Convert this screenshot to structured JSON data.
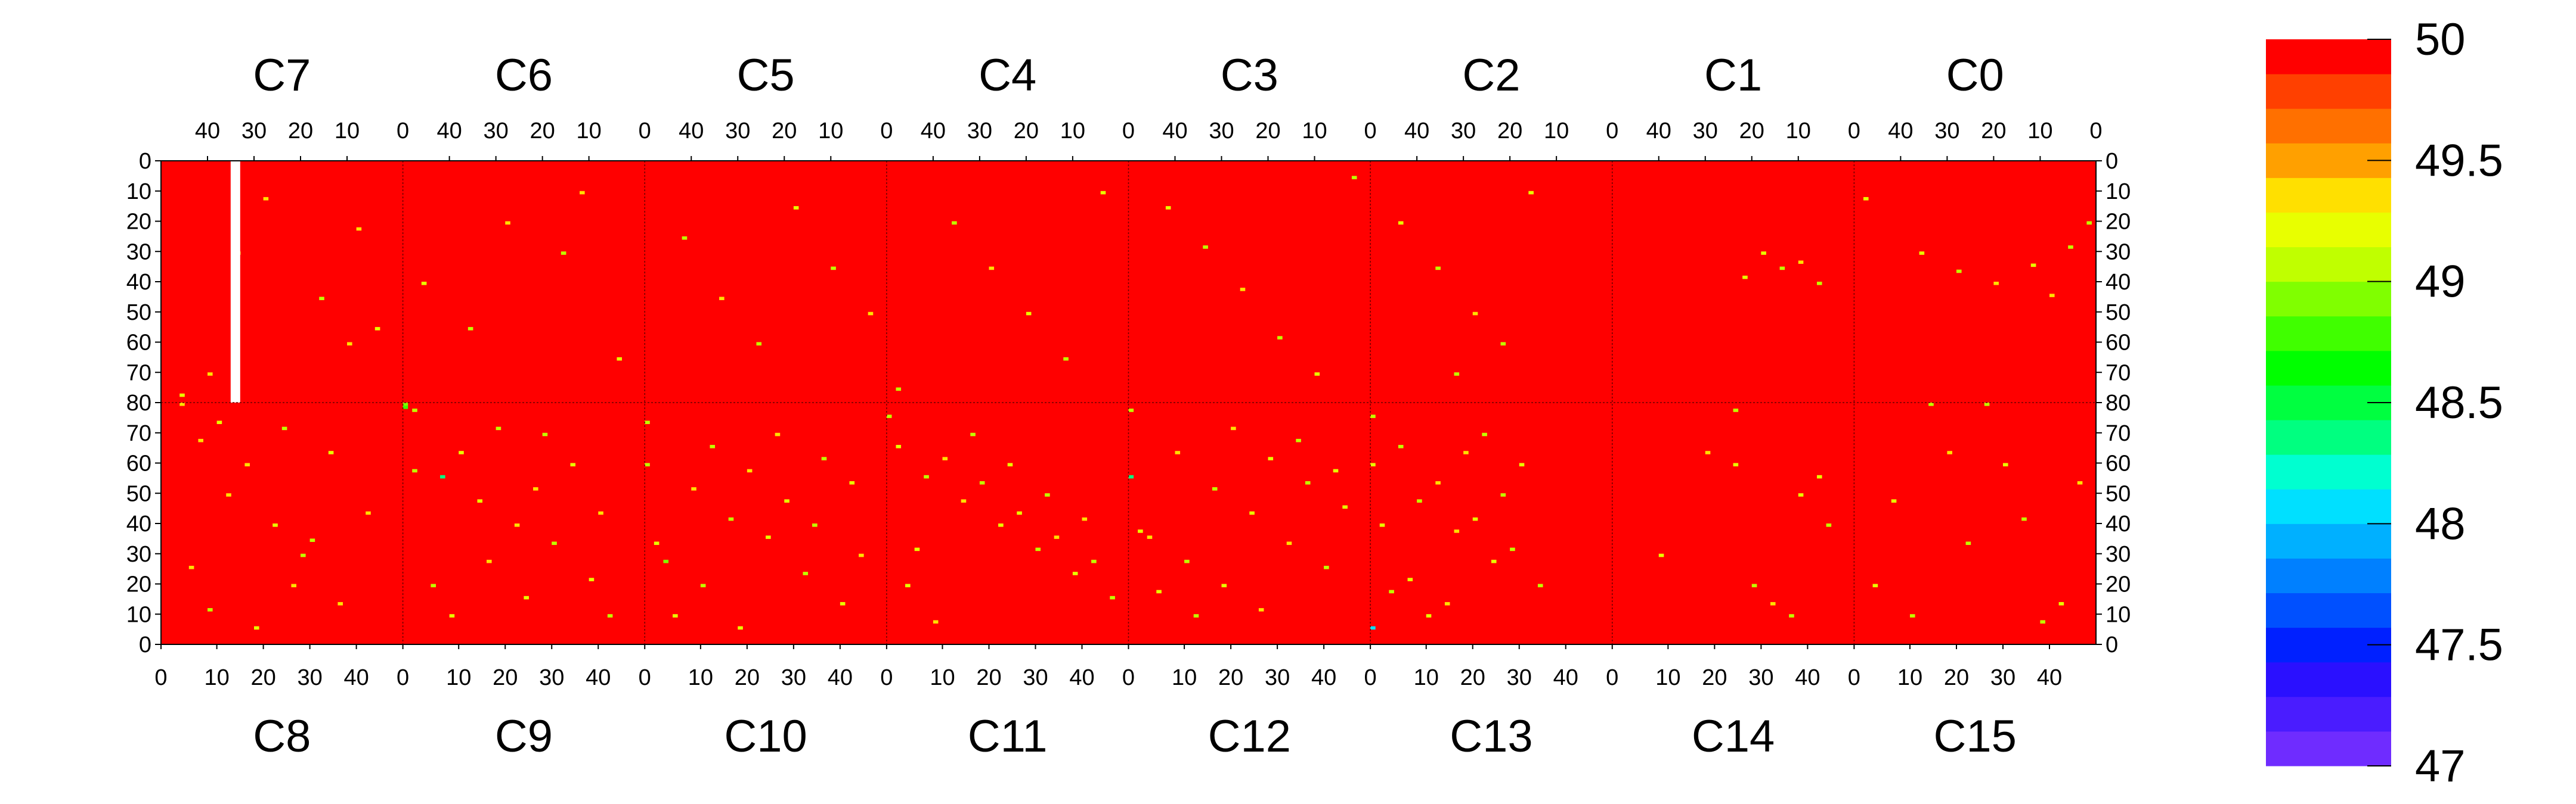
{
  "chart_data": {
    "type": "heatmap",
    "title": "",
    "top_chip_labels": [
      "C7",
      "C6",
      "C5",
      "C4",
      "C3",
      "C2",
      "C1",
      "C0"
    ],
    "bottom_chip_labels": [
      "C8",
      "C9",
      "C10",
      "C11",
      "C12",
      "C13",
      "C14",
      "C15"
    ],
    "x_tick_values": [
      0,
      10,
      20,
      30,
      40
    ],
    "y_tick_labels": [
      "0",
      "10",
      "20",
      "30",
      "40",
      "50",
      "60",
      "70",
      "80",
      "70",
      "60",
      "50",
      "40",
      "30",
      "20",
      "10",
      "0"
    ],
    "cols_per_chip": 52,
    "rows": 160,
    "grid": false,
    "colorbar": {
      "min": 47,
      "max": 50,
      "labels": [
        "50",
        "49.5",
        "49",
        "48.5",
        "48",
        "47.5",
        "47"
      ],
      "colors": [
        "#6f2cff",
        "#4a1cff",
        "#2a10ff",
        "#0020ff",
        "#0050ff",
        "#0080ff",
        "#00b0ff",
        "#00e0ff",
        "#00ffd0",
        "#00ff80",
        "#00ff40",
        "#00ff00",
        "#40ff00",
        "#80ff00",
        "#c0ff00",
        "#e8ff00",
        "#ffe000",
        "#ffa000",
        "#ff7000",
        "#ff4000",
        "#ff0000"
      ]
    },
    "background_value": 50,
    "background_color": "#ff0000",
    "dead_column": {
      "chip": "C7",
      "col": 34,
      "row_start": 0,
      "row_end": 80
    },
    "outliers": {
      "C8": [
        [
          4,
          80,
          49.3
        ],
        [
          4,
          77,
          49.2
        ],
        [
          18,
          100,
          49.4
        ],
        [
          24,
          120,
          49.2
        ],
        [
          28,
          140,
          49.3
        ],
        [
          10,
          148,
          49.1
        ],
        [
          6,
          134,
          49.4
        ],
        [
          36,
          96,
          49.2
        ],
        [
          14,
          110,
          49.3
        ],
        [
          26,
          88,
          49.1
        ],
        [
          32,
          125,
          49.0
        ],
        [
          8,
          92,
          49.3
        ],
        [
          20,
          154,
          49.2
        ],
        [
          40,
          60,
          49.4
        ],
        [
          44,
          116,
          49.3
        ],
        [
          12,
          86,
          49.2
        ],
        [
          30,
          130,
          49.1
        ],
        [
          38,
          146,
          49.3
        ],
        [
          22,
          12,
          49.4
        ],
        [
          16,
          30,
          49.2
        ],
        [
          34,
          45,
          49.1
        ],
        [
          42,
          22,
          49.3
        ],
        [
          46,
          55,
          49.2
        ],
        [
          10,
          70,
          49.4
        ]
      ],
      "C9": [
        [
          0,
          80,
          48.9
        ],
        [
          0,
          81,
          48.8
        ],
        [
          2,
          82,
          49.0
        ],
        [
          2,
          102,
          49.1
        ],
        [
          8,
          104,
          48.3
        ],
        [
          16,
          112,
          49.2
        ],
        [
          24,
          120,
          49.3
        ],
        [
          32,
          126,
          49.1
        ],
        [
          40,
          138,
          49.2
        ],
        [
          44,
          150,
          49.0
        ],
        [
          12,
          96,
          49.2
        ],
        [
          20,
          88,
          49.1
        ],
        [
          28,
          108,
          49.3
        ],
        [
          36,
          100,
          49.2
        ],
        [
          6,
          140,
          49.1
        ],
        [
          18,
          132,
          49.4
        ],
        [
          26,
          144,
          49.2
        ],
        [
          42,
          116,
          49.3
        ],
        [
          10,
          150,
          49.2
        ],
        [
          30,
          90,
          49.1
        ],
        [
          4,
          40,
          49.2
        ],
        [
          14,
          55,
          49.0
        ],
        [
          22,
          20,
          49.3
        ],
        [
          34,
          30,
          49.1
        ],
        [
          46,
          65,
          49.2
        ],
        [
          38,
          10,
          49.3
        ]
      ],
      "C10": [
        [
          0,
          86,
          49.0
        ],
        [
          0,
          100,
          49.1
        ],
        [
          2,
          126,
          49.2
        ],
        [
          4,
          132,
          48.9
        ],
        [
          10,
          108,
          49.3
        ],
        [
          18,
          118,
          49.1
        ],
        [
          26,
          124,
          49.2
        ],
        [
          34,
          136,
          49.0
        ],
        [
          42,
          146,
          49.2
        ],
        [
          14,
          94,
          49.1
        ],
        [
          22,
          102,
          49.3
        ],
        [
          30,
          112,
          49.2
        ],
        [
          38,
          98,
          49.1
        ],
        [
          46,
          130,
          49.3
        ],
        [
          6,
          150,
          49.2
        ],
        [
          12,
          140,
          49.1
        ],
        [
          20,
          154,
          49.2
        ],
        [
          28,
          90,
          49.3
        ],
        [
          36,
          120,
          49.1
        ],
        [
          44,
          106,
          49.2
        ],
        [
          8,
          25,
          49.1
        ],
        [
          16,
          45,
          49.3
        ],
        [
          24,
          60,
          49.0
        ],
        [
          32,
          15,
          49.2
        ],
        [
          40,
          35,
          49.1
        ],
        [
          48,
          50,
          49.3
        ]
      ],
      "C11": [
        [
          0,
          84,
          49.0
        ],
        [
          2,
          94,
          49.2
        ],
        [
          8,
          104,
          49.1
        ],
        [
          16,
          112,
          49.3
        ],
        [
          24,
          120,
          49.2
        ],
        [
          32,
          128,
          49.1
        ],
        [
          40,
          136,
          49.2
        ],
        [
          48,
          144,
          49.0
        ],
        [
          12,
          98,
          49.3
        ],
        [
          20,
          106,
          49.1
        ],
        [
          28,
          116,
          49.2
        ],
        [
          36,
          124,
          49.3
        ],
        [
          44,
          132,
          49.1
        ],
        [
          4,
          140,
          49.2
        ],
        [
          10,
          152,
          49.3
        ],
        [
          18,
          90,
          49.1
        ],
        [
          26,
          100,
          49.2
        ],
        [
          34,
          110,
          49.1
        ],
        [
          42,
          118,
          49.3
        ],
        [
          6,
          128,
          49.2
        ],
        [
          14,
          20,
          49.1
        ],
        [
          22,
          35,
          49.3
        ],
        [
          30,
          50,
          49.2
        ],
        [
          38,
          65,
          49.0
        ],
        [
          46,
          10,
          49.2
        ],
        [
          2,
          75,
          49.1
        ]
      ],
      "C12": [
        [
          0,
          82,
          49.1
        ],
        [
          0,
          104,
          48.4
        ],
        [
          2,
          122,
          49.2
        ],
        [
          10,
          96,
          49.3
        ],
        [
          18,
          108,
          49.1
        ],
        [
          26,
          116,
          49.2
        ],
        [
          34,
          126,
          49.3
        ],
        [
          42,
          134,
          49.1
        ],
        [
          6,
          142,
          49.2
        ],
        [
          14,
          150,
          49.1
        ],
        [
          22,
          88,
          49.3
        ],
        [
          30,
          98,
          49.2
        ],
        [
          38,
          106,
          49.1
        ],
        [
          46,
          114,
          49.2
        ],
        [
          4,
          124,
          49.3
        ],
        [
          12,
          132,
          49.1
        ],
        [
          20,
          140,
          49.2
        ],
        [
          28,
          148,
          49.3
        ],
        [
          36,
          92,
          49.1
        ],
        [
          44,
          102,
          49.2
        ],
        [
          8,
          15,
          49.2
        ],
        [
          16,
          28,
          49.1
        ],
        [
          24,
          42,
          49.3
        ],
        [
          32,
          58,
          49.0
        ],
        [
          40,
          70,
          49.2
        ],
        [
          48,
          5,
          49.1
        ]
      ],
      "C13": [
        [
          0,
          84,
          49.0
        ],
        [
          0,
          100,
          49.2
        ],
        [
          0,
          154,
          48.0
        ],
        [
          6,
          94,
          49.1
        ],
        [
          14,
          106,
          49.3
        ],
        [
          22,
          118,
          49.2
        ],
        [
          30,
          128,
          49.1
        ],
        [
          8,
          138,
          49.2
        ],
        [
          16,
          146,
          49.3
        ],
        [
          24,
          90,
          49.1
        ],
        [
          32,
          100,
          49.2
        ],
        [
          10,
          112,
          49.1
        ],
        [
          18,
          122,
          49.3
        ],
        [
          26,
          132,
          49.2
        ],
        [
          4,
          142,
          49.1
        ],
        [
          12,
          150,
          49.2
        ],
        [
          20,
          96,
          49.3
        ],
        [
          28,
          110,
          49.1
        ],
        [
          2,
          120,
          49.2
        ],
        [
          36,
          140,
          49.1
        ],
        [
          6,
          20,
          49.2
        ],
        [
          14,
          35,
          49.1
        ],
        [
          22,
          50,
          49.3
        ],
        [
          28,
          60,
          49.0
        ],
        [
          34,
          10,
          49.2
        ],
        [
          18,
          70,
          49.1
        ]
      ],
      "C14": [
        [
          26,
          82,
          49.1
        ],
        [
          26,
          100,
          49.2
        ],
        [
          30,
          140,
          49.1
        ],
        [
          34,
          146,
          49.3
        ],
        [
          40,
          110,
          49.2
        ],
        [
          46,
          120,
          49.1
        ],
        [
          10,
          130,
          49.2
        ],
        [
          20,
          96,
          49.3
        ],
        [
          38,
          150,
          49.1
        ],
        [
          44,
          104,
          49.2
        ],
        [
          32,
          30,
          49.2
        ],
        [
          36,
          35,
          49.1
        ],
        [
          40,
          33,
          49.3
        ],
        [
          28,
          38,
          49.2
        ],
        [
          44,
          40,
          49.1
        ]
      ],
      "C15": [
        [
          16,
          80,
          49.0
        ],
        [
          28,
          80,
          49.1
        ],
        [
          4,
          140,
          49.2
        ],
        [
          12,
          150,
          49.1
        ],
        [
          20,
          96,
          49.3
        ],
        [
          32,
          100,
          49.2
        ],
        [
          40,
          152,
          49.1
        ],
        [
          44,
          146,
          49.2
        ],
        [
          36,
          118,
          49.1
        ],
        [
          48,
          106,
          49.3
        ],
        [
          8,
          112,
          49.2
        ],
        [
          24,
          126,
          49.1
        ],
        [
          14,
          30,
          49.2
        ],
        [
          22,
          36,
          49.1
        ],
        [
          30,
          40,
          49.3
        ],
        [
          38,
          34,
          49.2
        ],
        [
          46,
          28,
          49.1
        ],
        [
          50,
          20,
          49.0
        ],
        [
          2,
          12,
          49.2
        ],
        [
          42,
          44,
          49.3
        ]
      ]
    }
  }
}
